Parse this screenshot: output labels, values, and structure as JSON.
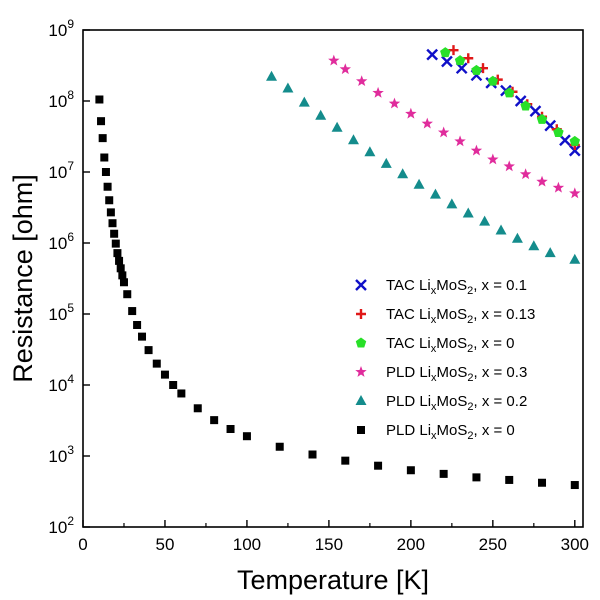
{
  "chart_data": {
    "type": "scatter",
    "xlabel": "Temperature [K]",
    "ylabel": "Resistance [ohm]",
    "xlim": [
      0,
      305
    ],
    "ylim": [
      100,
      1000000000
    ],
    "yscale": "log",
    "grid": false,
    "legend_position": "right-middle",
    "xticks": [
      "0",
      "50",
      "100",
      "150",
      "200",
      "250",
      "300"
    ],
    "yticks": [
      {
        "base": "10",
        "exp": "2"
      },
      {
        "base": "10",
        "exp": "3"
      },
      {
        "base": "10",
        "exp": "4"
      },
      {
        "base": "10",
        "exp": "5"
      },
      {
        "base": "10",
        "exp": "6"
      },
      {
        "base": "10",
        "exp": "7"
      },
      {
        "base": "10",
        "exp": "8"
      },
      {
        "base": "10",
        "exp": "9"
      }
    ],
    "series": [
      {
        "legend": {
          "prefix": "TAC Li",
          "sub1": "x",
          "mid": "MoS",
          "sub2": "2",
          "suffix": ", x = 0.1"
        },
        "marker": "x",
        "color": "#1010c8",
        "x": [
          213,
          222,
          231,
          240,
          249,
          258,
          267,
          276,
          285,
          294,
          300
        ],
        "y": [
          450000000,
          360000000,
          290000000,
          230000000,
          180000000,
          140000000,
          100000000,
          72000000,
          45000000,
          28000000,
          20000000
        ]
      },
      {
        "legend": {
          "prefix": "TAC Li",
          "sub1": "x",
          "mid": "MoS",
          "sub2": "2",
          "suffix": ", x = 0.13"
        },
        "marker": "plus",
        "color": "#e01818",
        "x": [
          226,
          235,
          244,
          253,
          262,
          271,
          280,
          289,
          300
        ],
        "y": [
          520000000,
          400000000,
          290000000,
          200000000,
          135000000,
          90000000,
          60000000,
          40000000,
          24000000
        ]
      },
      {
        "legend": {
          "prefix": "TAC Li",
          "sub1": "x",
          "mid": "MoS",
          "sub2": "2",
          "suffix": ", x = 0"
        },
        "marker": "pentagon",
        "color": "#28e028",
        "x": [
          221,
          230,
          240,
          250,
          260,
          270,
          280,
          290,
          300
        ],
        "y": [
          480000000,
          370000000,
          270000000,
          190000000,
          130000000,
          85000000,
          55000000,
          36000000,
          27000000
        ]
      },
      {
        "legend": {
          "prefix": "PLD Li",
          "sub1": "x",
          "mid": "MoS",
          "sub2": "2",
          "suffix": ", x = 0.3"
        },
        "marker": "star",
        "color": "#e02c9c",
        "x": [
          153,
          160,
          170,
          180,
          190,
          200,
          210,
          220,
          230,
          240,
          250,
          260,
          270,
          280,
          290,
          300
        ],
        "y": [
          370000000,
          280000000,
          190000000,
          130000000,
          92000000,
          66000000,
          48000000,
          36000000,
          27000000,
          20000000,
          15000000,
          12000000,
          9300000,
          7300000,
          6000000,
          5000000
        ]
      },
      {
        "legend": {
          "prefix": "PLD Li",
          "sub1": "x",
          "mid": "MoS",
          "sub2": "2",
          "suffix": ", x = 0.2"
        },
        "marker": "triangle",
        "color": "#148c8c",
        "x": [
          115,
          125,
          135,
          145,
          155,
          165,
          175,
          185,
          195,
          205,
          215,
          225,
          235,
          245,
          255,
          265,
          275,
          285,
          300
        ],
        "y": [
          220000000,
          150000000,
          95000000,
          62000000,
          42000000,
          28000000,
          19000000,
          13000000,
          9300000,
          6600000,
          4800000,
          3500000,
          2600000,
          2000000,
          1500000,
          1150000,
          900000,
          720000,
          580000
        ]
      },
      {
        "legend": {
          "prefix": "PLD Li",
          "sub1": "x",
          "mid": "MoS",
          "sub2": "2",
          "suffix": ", x = 0"
        },
        "marker": "square",
        "color": "#000000",
        "x": [
          10,
          11,
          12,
          13,
          14,
          15,
          16,
          17,
          18,
          19,
          20,
          21,
          22,
          23,
          24,
          25,
          27,
          30,
          33,
          36,
          40,
          45,
          50,
          55,
          60,
          70,
          80,
          90,
          100,
          120,
          140,
          160,
          180,
          200,
          220,
          240,
          260,
          280,
          300
        ],
        "y": [
          105000000,
          52000000,
          30000000,
          16000000,
          10000000,
          6200000,
          4000000,
          2700000,
          1900000,
          1350000,
          980000,
          720000,
          560000,
          440000,
          350000,
          280000,
          190000,
          110000,
          70000,
          48000,
          31000,
          20000,
          14000,
          10000,
          7600,
          4700,
          3200,
          2400,
          1900,
          1350,
          1050,
          860,
          730,
          630,
          560,
          500,
          460,
          420,
          390
        ]
      }
    ]
  }
}
